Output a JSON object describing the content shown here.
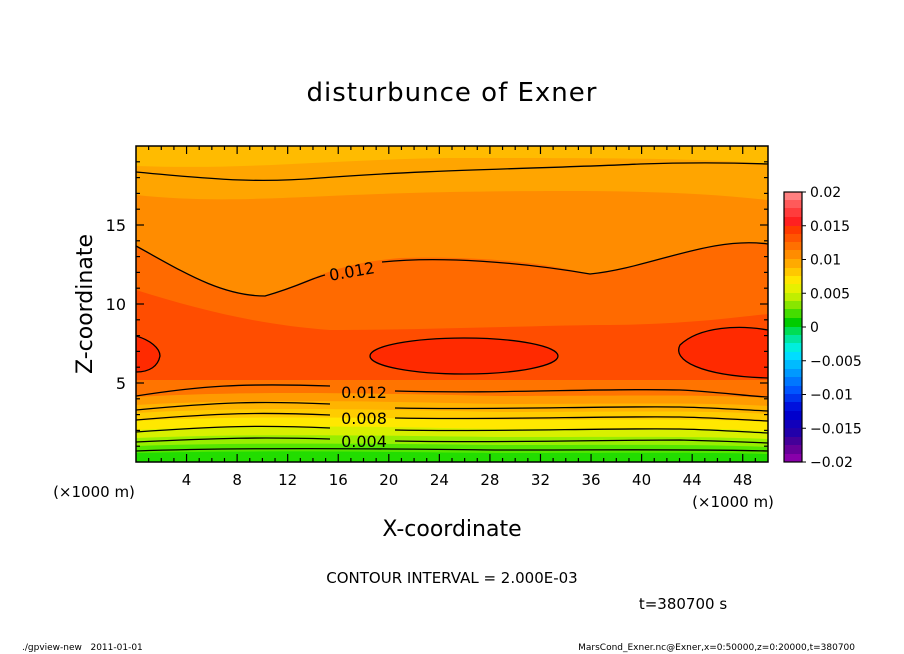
{
  "chart_data": {
    "type": "heatmap",
    "title": "disturbunce of Exner",
    "xlabel": "X-coordinate",
    "ylabel": "Z-coordinate",
    "x_unit": "(×1000 m)",
    "y_unit": "(×1000 m)",
    "xlim": [
      0,
      50
    ],
    "ylim": [
      0,
      20
    ],
    "x_ticks": [
      "4",
      "8",
      "12",
      "16",
      "20",
      "24",
      "28",
      "32",
      "36",
      "40",
      "44",
      "48"
    ],
    "y_ticks": [
      "5",
      "10",
      "15"
    ],
    "colorbar_ticks": [
      "0.02",
      "0.015",
      "0.01",
      "0.005",
      "0",
      "−0.005",
      "−0.01",
      "−0.015",
      "−0.02"
    ],
    "colorbar_range": [
      -0.02,
      0.02
    ],
    "contour_labels": [
      "0.012",
      "0.012",
      "0.008",
      "0.004"
    ],
    "contour_interval_text": "CONTOUR INTERVAL = 2.000E-03",
    "time_text": "t=380700 s",
    "footer_left": "./gpview-new   2011-01-01",
    "footer_right": "MarsCond_Exner.nc@Exner,x=0:50000,z=0:20000,t=380700",
    "colors": {
      "deep_orange": "#ff6a00",
      "orange": "#ff8c00",
      "light_orange": "#ffa500",
      "red": "#ff2a00",
      "yellow": "#ffdd00",
      "green": "#33ee00"
    }
  }
}
